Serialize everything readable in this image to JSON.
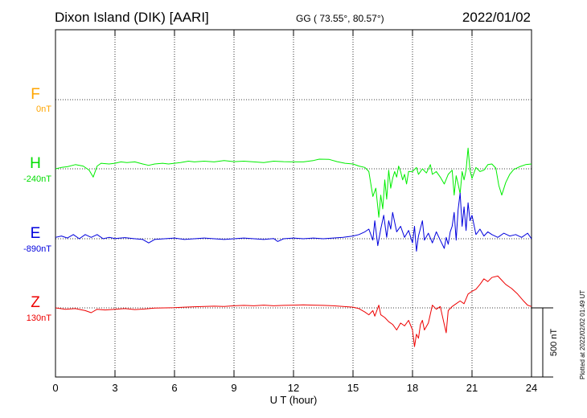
{
  "header": {
    "title": "Dixon Island (DIK)  [AARI]",
    "coords": "GG ( 73.55°,  80.57°)",
    "date": "2022/01/02"
  },
  "footer": {
    "plotted": "Plotted at 2022/02/02 01:49 UT"
  },
  "chart_data": {
    "type": "line",
    "xlabel": "U T (hour)",
    "xlim": [
      0,
      24
    ],
    "xticks": [
      0,
      3,
      6,
      9,
      12,
      15,
      18,
      21,
      24
    ],
    "scale_bar_label": "500 nT",
    "scale_bar_nT": 500,
    "series": [
      {
        "name": "F",
        "offset_label": "0nT",
        "color": "#ffa500",
        "baseline_nT": 0,
        "points": []
      },
      {
        "name": "H",
        "offset_label": "-240nT",
        "color": "#00ee00",
        "baseline_nT": -240,
        "points": [
          [
            0,
            -240
          ],
          [
            0.3,
            -230
          ],
          [
            0.6,
            -225
          ],
          [
            1,
            -210
          ],
          [
            1.4,
            -220
          ],
          [
            1.7,
            -250
          ],
          [
            1.9,
            -300
          ],
          [
            2.1,
            -220
          ],
          [
            2.3,
            -200
          ],
          [
            2.7,
            -205
          ],
          [
            3,
            -200
          ],
          [
            3.3,
            -190
          ],
          [
            3.6,
            -195
          ],
          [
            4,
            -190
          ],
          [
            4.4,
            -205
          ],
          [
            4.7,
            -215
          ],
          [
            5,
            -205
          ],
          [
            5.4,
            -200
          ],
          [
            5.7,
            -205
          ],
          [
            6,
            -200
          ],
          [
            6.3,
            -195
          ],
          [
            6.7,
            -185
          ],
          [
            7,
            -190
          ],
          [
            7.5,
            -185
          ],
          [
            8,
            -190
          ],
          [
            8.5,
            -180
          ],
          [
            9,
            -188
          ],
          [
            9.5,
            -185
          ],
          [
            10,
            -190
          ],
          [
            10.5,
            -195
          ],
          [
            11,
            -185
          ],
          [
            11.5,
            -188
          ],
          [
            12,
            -190
          ],
          [
            12.5,
            -190
          ],
          [
            13,
            -180
          ],
          [
            13.3,
            -170
          ],
          [
            13.8,
            -172
          ],
          [
            14.2,
            -188
          ],
          [
            14.6,
            -200
          ],
          [
            15,
            -205
          ],
          [
            15.3,
            -220
          ],
          [
            15.6,
            -230
          ],
          [
            15.8,
            -260
          ],
          [
            16,
            -440
          ],
          [
            16.15,
            -380
          ],
          [
            16.3,
            -590
          ],
          [
            16.4,
            -430
          ],
          [
            16.5,
            -530
          ],
          [
            16.6,
            -320
          ],
          [
            16.7,
            -460
          ],
          [
            16.8,
            -250
          ],
          [
            16.9,
            -380
          ],
          [
            17,
            -310
          ],
          [
            17.1,
            -260
          ],
          [
            17.2,
            -300
          ],
          [
            17.3,
            -220
          ],
          [
            17.4,
            -260
          ],
          [
            17.5,
            -320
          ],
          [
            17.6,
            -280
          ],
          [
            17.7,
            -350
          ],
          [
            17.8,
            -260
          ],
          [
            18,
            -260
          ],
          [
            18.2,
            -230
          ],
          [
            18.3,
            -280
          ],
          [
            18.5,
            -240
          ],
          [
            18.7,
            -270
          ],
          [
            18.9,
            -210
          ],
          [
            19,
            -280
          ],
          [
            19.2,
            -260
          ],
          [
            19.4,
            -300
          ],
          [
            19.6,
            -350
          ],
          [
            19.8,
            -280
          ],
          [
            20,
            -250
          ],
          [
            20.1,
            -430
          ],
          [
            20.2,
            -290
          ],
          [
            20.3,
            -350
          ],
          [
            20.4,
            -420
          ],
          [
            20.5,
            -260
          ],
          [
            20.6,
            -320
          ],
          [
            20.7,
            -250
          ],
          [
            20.8,
            -90
          ],
          [
            20.9,
            -250
          ],
          [
            21,
            -310
          ],
          [
            21.2,
            -230
          ],
          [
            21.4,
            -260
          ],
          [
            21.6,
            -250
          ],
          [
            21.8,
            -210
          ],
          [
            22,
            -205
          ],
          [
            22.2,
            -235
          ],
          [
            22.35,
            -360
          ],
          [
            22.5,
            -430
          ],
          [
            22.7,
            -340
          ],
          [
            22.9,
            -280
          ],
          [
            23.1,
            -245
          ],
          [
            23.4,
            -225
          ],
          [
            23.7,
            -210
          ],
          [
            24,
            -205
          ]
        ]
      },
      {
        "name": "E",
        "offset_label": "-890nT",
        "color": "#0000dd",
        "baseline_nT": -890,
        "points": [
          [
            0,
            -880
          ],
          [
            0.3,
            -870
          ],
          [
            0.6,
            -885
          ],
          [
            0.9,
            -860
          ],
          [
            1.2,
            -890
          ],
          [
            1.5,
            -860
          ],
          [
            1.8,
            -880
          ],
          [
            2.1,
            -860
          ],
          [
            2.4,
            -890
          ],
          [
            2.7,
            -880
          ],
          [
            3,
            -888
          ],
          [
            3.5,
            -882
          ],
          [
            4,
            -890
          ],
          [
            4.4,
            -895
          ],
          [
            4.7,
            -920
          ],
          [
            5,
            -895
          ],
          [
            5.5,
            -890
          ],
          [
            6,
            -885
          ],
          [
            6.5,
            -895
          ],
          [
            7,
            -890
          ],
          [
            7.5,
            -885
          ],
          [
            8,
            -890
          ],
          [
            8.5,
            -895
          ],
          [
            9,
            -890
          ],
          [
            9.5,
            -885
          ],
          [
            10,
            -890
          ],
          [
            10.5,
            -895
          ],
          [
            11,
            -888
          ],
          [
            11.2,
            -910
          ],
          [
            11.5,
            -890
          ],
          [
            12,
            -885
          ],
          [
            12.5,
            -890
          ],
          [
            13,
            -885
          ],
          [
            13.5,
            -890
          ],
          [
            14,
            -885
          ],
          [
            14.5,
            -880
          ],
          [
            15,
            -870
          ],
          [
            15.3,
            -860
          ],
          [
            15.6,
            -840
          ],
          [
            15.8,
            -820
          ],
          [
            16,
            -900
          ],
          [
            16.1,
            -760
          ],
          [
            16.25,
            -940
          ],
          [
            16.4,
            -820
          ],
          [
            16.55,
            -720
          ],
          [
            16.7,
            -880
          ],
          [
            16.8,
            -760
          ],
          [
            16.9,
            -820
          ],
          [
            17,
            -700
          ],
          [
            17.2,
            -840
          ],
          [
            17.4,
            -800
          ],
          [
            17.6,
            -880
          ],
          [
            17.8,
            -830
          ],
          [
            18,
            -920
          ],
          [
            18.1,
            -800
          ],
          [
            18.2,
            -980
          ],
          [
            18.3,
            -870
          ],
          [
            18.5,
            -760
          ],
          [
            18.6,
            -900
          ],
          [
            18.8,
            -850
          ],
          [
            19,
            -920
          ],
          [
            19.2,
            -840
          ],
          [
            19.4,
            -900
          ],
          [
            19.6,
            -960
          ],
          [
            19.7,
            -880
          ],
          [
            19.8,
            -930
          ],
          [
            19.9,
            -840
          ],
          [
            20,
            -800
          ],
          [
            20.1,
            -700
          ],
          [
            20.2,
            -900
          ],
          [
            20.3,
            -680
          ],
          [
            20.4,
            -560
          ],
          [
            20.5,
            -800
          ],
          [
            20.6,
            -660
          ],
          [
            20.7,
            -830
          ],
          [
            20.8,
            -630
          ],
          [
            20.9,
            -760
          ],
          [
            21,
            -720
          ],
          [
            21.2,
            -860
          ],
          [
            21.4,
            -820
          ],
          [
            21.6,
            -870
          ],
          [
            21.8,
            -840
          ],
          [
            22,
            -860
          ],
          [
            22.3,
            -880
          ],
          [
            22.6,
            -850
          ],
          [
            22.9,
            -870
          ],
          [
            23.2,
            -860
          ],
          [
            23.5,
            -880
          ],
          [
            23.8,
            -850
          ],
          [
            24,
            -890
          ]
        ]
      },
      {
        "name": "Z",
        "offset_label": "130nT",
        "color": "#ee0000",
        "baseline_nT": 130,
        "points": [
          [
            0,
            130
          ],
          [
            0.5,
            120
          ],
          [
            1,
            125
          ],
          [
            1.5,
            110
          ],
          [
            1.8,
            95
          ],
          [
            2.1,
            120
          ],
          [
            2.5,
            115
          ],
          [
            3,
            120
          ],
          [
            3.5,
            125
          ],
          [
            4,
            118
          ],
          [
            4.5,
            122
          ],
          [
            5,
            128
          ],
          [
            5.5,
            130
          ],
          [
            6,
            132
          ],
          [
            6.5,
            135
          ],
          [
            7,
            138
          ],
          [
            7.5,
            140
          ],
          [
            8,
            142
          ],
          [
            8.5,
            140
          ],
          [
            9,
            145
          ],
          [
            9.5,
            148
          ],
          [
            10,
            145
          ],
          [
            10.5,
            150
          ],
          [
            11,
            145
          ],
          [
            11.5,
            148
          ],
          [
            12,
            150
          ],
          [
            12.5,
            152
          ],
          [
            13,
            150
          ],
          [
            13.5,
            148
          ],
          [
            14,
            145
          ],
          [
            14.5,
            140
          ],
          [
            15,
            135
          ],
          [
            15.3,
            125
          ],
          [
            15.6,
            100
          ],
          [
            15.8,
            80
          ],
          [
            16,
            110
          ],
          [
            16.1,
            70
          ],
          [
            16.3,
            150
          ],
          [
            16.4,
            80
          ],
          [
            16.6,
            60
          ],
          [
            16.8,
            30
          ],
          [
            17,
            10
          ],
          [
            17.2,
            -30
          ],
          [
            17.4,
            20
          ],
          [
            17.6,
            0
          ],
          [
            17.8,
            40
          ],
          [
            18,
            -30
          ],
          [
            18.1,
            -150
          ],
          [
            18.2,
            -60
          ],
          [
            18.3,
            -90
          ],
          [
            18.4,
            10
          ],
          [
            18.5,
            40
          ],
          [
            18.6,
            -30
          ],
          [
            18.8,
            20
          ],
          [
            19,
            150
          ],
          [
            19.2,
            120
          ],
          [
            19.4,
            140
          ],
          [
            19.6,
            10
          ],
          [
            19.7,
            -50
          ],
          [
            19.8,
            110
          ],
          [
            20,
            140
          ],
          [
            20.2,
            160
          ],
          [
            20.4,
            180
          ],
          [
            20.6,
            160
          ],
          [
            20.8,
            230
          ],
          [
            21,
            250
          ],
          [
            21.2,
            265
          ],
          [
            21.4,
            300
          ],
          [
            21.6,
            340
          ],
          [
            21.8,
            320
          ],
          [
            22,
            350
          ],
          [
            22.3,
            360
          ],
          [
            22.5,
            330
          ],
          [
            22.7,
            300
          ],
          [
            23,
            270
          ],
          [
            23.3,
            230
          ],
          [
            23.6,
            180
          ],
          [
            23.8,
            150
          ],
          [
            24,
            140
          ]
        ]
      }
    ]
  }
}
